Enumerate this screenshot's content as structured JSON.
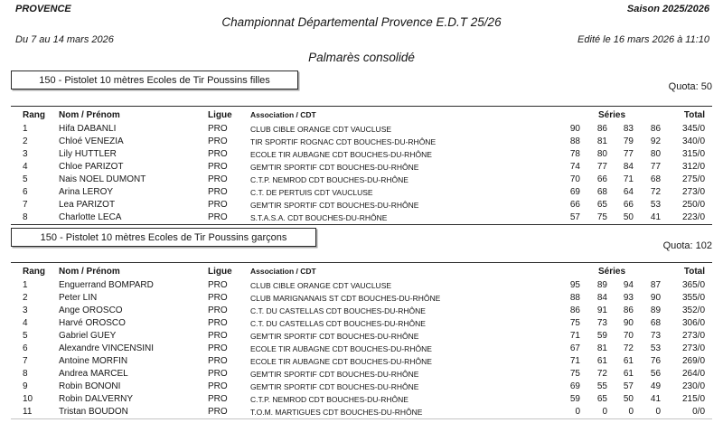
{
  "header": {
    "region": "PROVENCE",
    "season": "Saison 2025/2026",
    "title": "Championnat Départemental Provence E.D.T 25/26",
    "date_range": "Du 7 au 14 mars 2026",
    "edited": "Edité le 16 mars 2026 à 11:10",
    "subtitle": "Palmarès consolidé"
  },
  "table_headers": {
    "rank": "Rang",
    "name": "Nom / Prénom",
    "league": "Ligue",
    "association": "Association / CDT",
    "series": "Séries",
    "total": "Total"
  },
  "sections": [
    {
      "title": "150 - Pistolet 10 mètres Ecoles de Tir Poussins filles",
      "quota": "Quota: 50",
      "rows": [
        {
          "rank": "1",
          "name": "Hifa DABANLI",
          "league": "PRO",
          "association": "CLUB CIBLE ORANGE CDT VAUCLUSE",
          "series": [
            "90",
            "86",
            "83",
            "86"
          ],
          "total": "345/0"
        },
        {
          "rank": "2",
          "name": "Chloé VENEZIA",
          "league": "PRO",
          "association": "TIR SPORTIF ROGNAC CDT BOUCHES-DU-RHÔNE",
          "series": [
            "88",
            "81",
            "79",
            "92"
          ],
          "total": "340/0"
        },
        {
          "rank": "3",
          "name": "Lily HUTTLER",
          "league": "PRO",
          "association": "ECOLE TIR AUBAGNE CDT BOUCHES-DU-RHÔNE",
          "series": [
            "78",
            "80",
            "77",
            "80"
          ],
          "total": "315/0"
        },
        {
          "rank": "4",
          "name": "Chloe PARIZOT",
          "league": "PRO",
          "association": "GEM'TIR SPORTIF CDT BOUCHES-DU-RHÔNE",
          "series": [
            "74",
            "77",
            "84",
            "77"
          ],
          "total": "312/0"
        },
        {
          "rank": "5",
          "name": "Nais NOEL DUMONT",
          "league": "PRO",
          "association": "C.T.P. NEMROD CDT BOUCHES-DU-RHÔNE",
          "series": [
            "70",
            "66",
            "71",
            "68"
          ],
          "total": "275/0"
        },
        {
          "rank": "6",
          "name": "Arina LEROY",
          "league": "PRO",
          "association": "C.T. DE PERTUIS CDT VAUCLUSE",
          "series": [
            "69",
            "68",
            "64",
            "72"
          ],
          "total": "273/0"
        },
        {
          "rank": "7",
          "name": "Lea PARIZOT",
          "league": "PRO",
          "association": "GEM'TIR SPORTIF CDT BOUCHES-DU-RHÔNE",
          "series": [
            "66",
            "65",
            "66",
            "53"
          ],
          "total": "250/0"
        },
        {
          "rank": "8",
          "name": "Charlotte LECA",
          "league": "PRO",
          "association": "S.T.A.S.A. CDT BOUCHES-DU-RHÔNE",
          "series": [
            "57",
            "75",
            "50",
            "41"
          ],
          "total": "223/0"
        }
      ]
    },
    {
      "title": "150 - Pistolet 10 mètres Ecoles de Tir Poussins garçons",
      "quota": "Quota: 102",
      "rows": [
        {
          "rank": "1",
          "name": "Enguerrand BOMPARD",
          "league": "PRO",
          "association": "CLUB CIBLE ORANGE CDT VAUCLUSE",
          "series": [
            "95",
            "89",
            "94",
            "87"
          ],
          "total": "365/0"
        },
        {
          "rank": "2",
          "name": "Peter LIN",
          "league": "PRO",
          "association": "CLUB MARIGNANAIS ST CDT BOUCHES-DU-RHÔNE",
          "series": [
            "88",
            "84",
            "93",
            "90"
          ],
          "total": "355/0"
        },
        {
          "rank": "3",
          "name": "Ange OROSCO",
          "league": "PRO",
          "association": "C.T. DU CASTELLAS CDT BOUCHES-DU-RHÔNE",
          "series": [
            "86",
            "91",
            "86",
            "89"
          ],
          "total": "352/0"
        },
        {
          "rank": "4",
          "name": "Harvé OROSCO",
          "league": "PRO",
          "association": "C.T. DU CASTELLAS CDT BOUCHES-DU-RHÔNE",
          "series": [
            "75",
            "73",
            "90",
            "68"
          ],
          "total": "306/0"
        },
        {
          "rank": "5",
          "name": "Gabriel GUEY",
          "league": "PRO",
          "association": "GEM'TIR SPORTIF CDT BOUCHES-DU-RHÔNE",
          "series": [
            "71",
            "59",
            "70",
            "73"
          ],
          "total": "273/0"
        },
        {
          "rank": "6",
          "name": "Alexandre VINCENSINI",
          "league": "PRO",
          "association": "ECOLE TIR AUBAGNE CDT BOUCHES-DU-RHÔNE",
          "series": [
            "67",
            "81",
            "72",
            "53"
          ],
          "total": "273/0"
        },
        {
          "rank": "7",
          "name": "Antoine MORFIN",
          "league": "PRO",
          "association": "ECOLE TIR AUBAGNE CDT BOUCHES-DU-RHÔNE",
          "series": [
            "71",
            "61",
            "61",
            "76"
          ],
          "total": "269/0"
        },
        {
          "rank": "8",
          "name": "Andrea MARCEL",
          "league": "PRO",
          "association": "GEM'TIR SPORTIF CDT BOUCHES-DU-RHÔNE",
          "series": [
            "75",
            "72",
            "61",
            "56"
          ],
          "total": "264/0"
        },
        {
          "rank": "9",
          "name": "Robin BONONI",
          "league": "PRO",
          "association": "GEM'TIR SPORTIF CDT BOUCHES-DU-RHÔNE",
          "series": [
            "69",
            "55",
            "57",
            "49"
          ],
          "total": "230/0"
        },
        {
          "rank": "10",
          "name": "Robin DALVERNY",
          "league": "PRO",
          "association": "C.T.P. NEMROD CDT BOUCHES-DU-RHÔNE",
          "series": [
            "59",
            "65",
            "50",
            "41"
          ],
          "total": "215/0"
        },
        {
          "rank": "11",
          "name": "Tristan BOUDON",
          "league": "PRO",
          "association": "T.O.M. MARTIGUES CDT BOUCHES-DU-RHÔNE",
          "series": [
            "0",
            "0",
            "0",
            "0"
          ],
          "total": "0/0"
        }
      ]
    }
  ]
}
